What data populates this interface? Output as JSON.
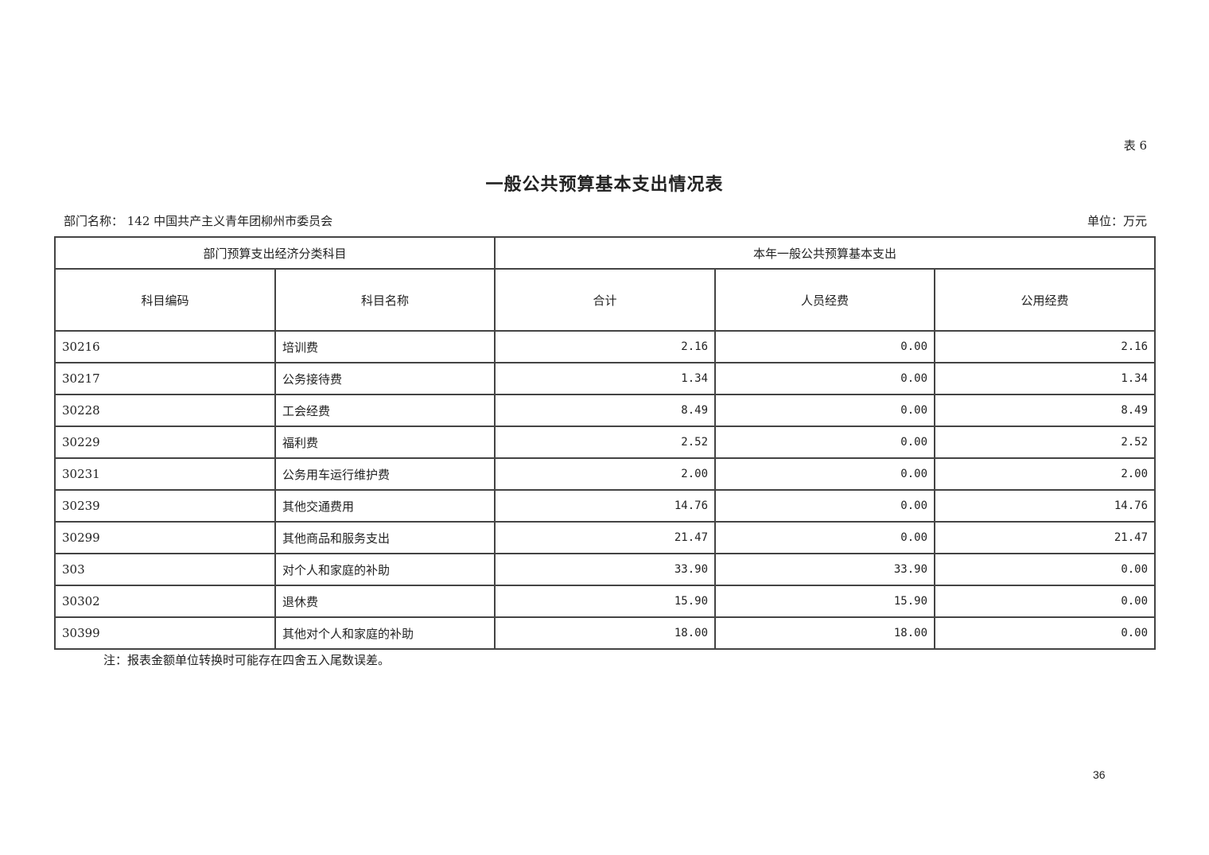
{
  "table_no": "表 6",
  "title": "一般公共预算基本支出情况表",
  "department": "部门名称：  142 中国共产主义青年团柳州市委员会",
  "unit": "单位：万元",
  "header": {
    "group_left": "部门预算支出经济分类科目",
    "group_right": "本年一般公共预算基本支出",
    "code": "科目编码",
    "name": "科目名称",
    "total": "合计",
    "personnel": "人员经费",
    "public": "公用经费"
  },
  "rows": [
    {
      "code": "30216",
      "name": "培训费",
      "total": "2.16",
      "personnel": "0.00",
      "public": "2.16"
    },
    {
      "code": "30217",
      "name": "公务接待费",
      "total": "1.34",
      "personnel": "0.00",
      "public": "1.34"
    },
    {
      "code": "30228",
      "name": "工会经费",
      "total": "8.49",
      "personnel": "0.00",
      "public": "8.49"
    },
    {
      "code": "30229",
      "name": "福利费",
      "total": "2.52",
      "personnel": "0.00",
      "public": "2.52"
    },
    {
      "code": "30231",
      "name": "公务用车运行维护费",
      "total": "2.00",
      "personnel": "0.00",
      "public": "2.00"
    },
    {
      "code": "30239",
      "name": "其他交通费用",
      "total": "14.76",
      "personnel": "0.00",
      "public": "14.76"
    },
    {
      "code": "30299",
      "name": "其他商品和服务支出",
      "total": "21.47",
      "personnel": "0.00",
      "public": "21.47"
    },
    {
      "code": "303",
      "name": "对个人和家庭的补助",
      "total": "33.90",
      "personnel": "33.90",
      "public": "0.00"
    },
    {
      "code": "30302",
      "name": "退休费",
      "total": "15.90",
      "personnel": "15.90",
      "public": "0.00"
    },
    {
      "code": "30399",
      "name": "其他对个人和家庭的补助",
      "total": "18.00",
      "personnel": "18.00",
      "public": "0.00"
    }
  ],
  "note": "注：报表金额单位转换时可能存在四舍五入尾数误差。",
  "page_number": "36"
}
